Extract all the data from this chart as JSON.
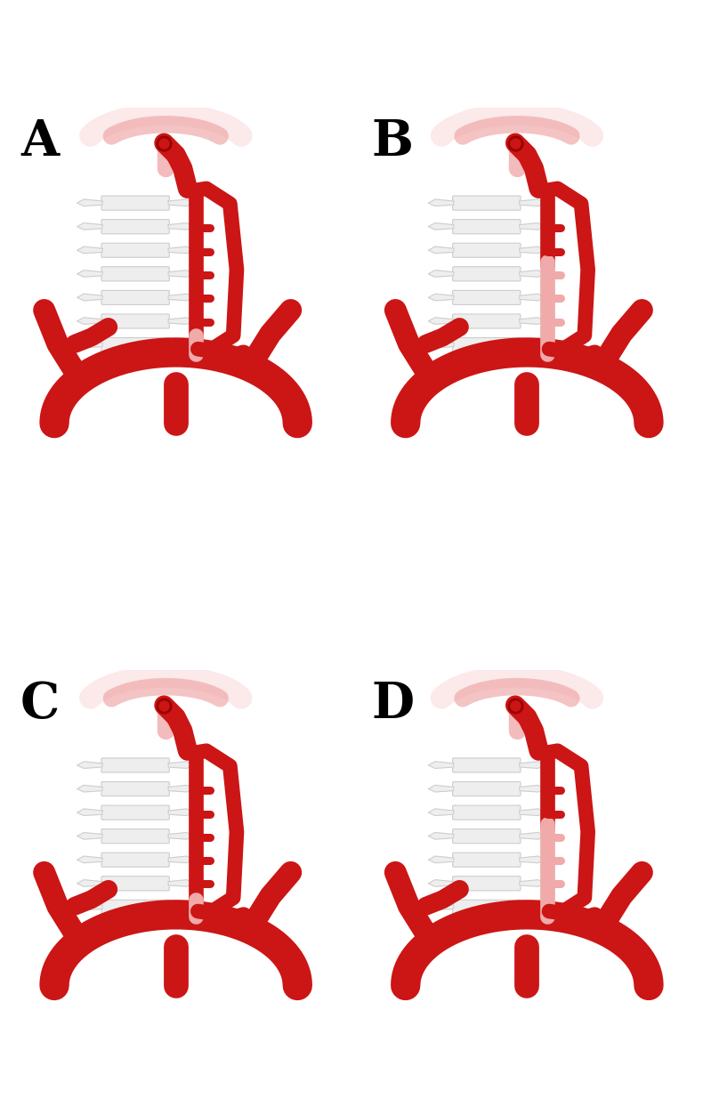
{
  "bg_color": "#ffffff",
  "red": "#cc1515",
  "red_dark": "#990000",
  "red_light": "#f0aaaa",
  "red_vlight": "#fce0e0",
  "spine_fill": "#eeeeee",
  "spine_edge": "#cccccc",
  "label_fontsize": 40,
  "panels": [
    "A",
    "B",
    "C",
    "D"
  ]
}
